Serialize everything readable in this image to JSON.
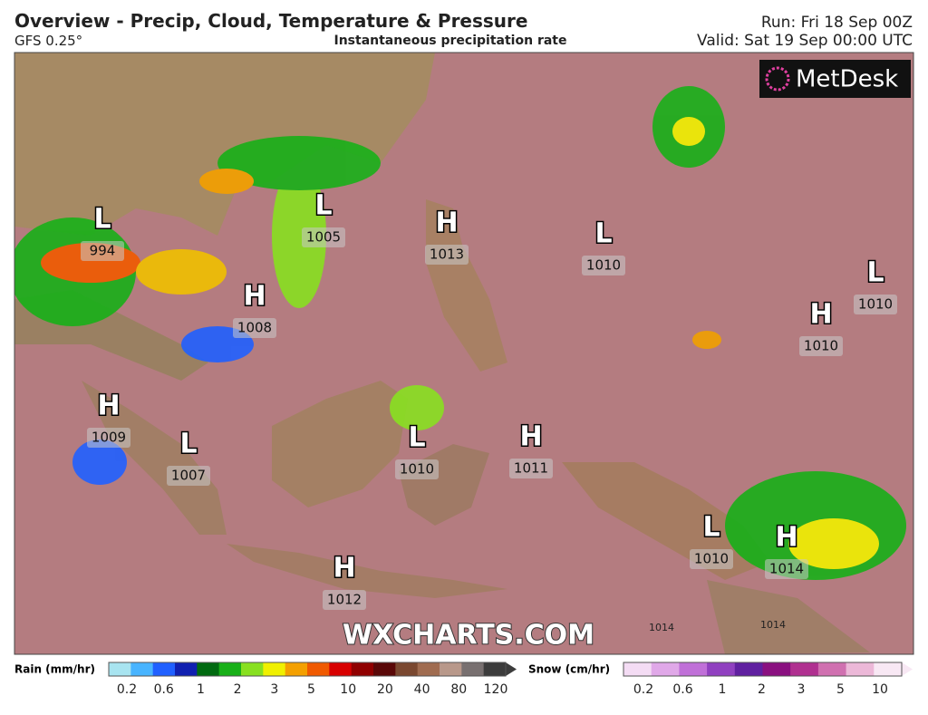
{
  "header": {
    "title": "Overview - Precip, Cloud, Temperature & Pressure",
    "model": "GFS 0.25°",
    "product": "Instantaneous precipitation rate",
    "run": "Run: Fri 18 Sep 00Z",
    "valid": "Valid: Sat 19 Sep 00:00 UTC"
  },
  "logo": "MetDesk",
  "watermark": "WXCHARTS.COM",
  "pressure_centers": [
    {
      "type": "L",
      "value": 994
    },
    {
      "type": "L",
      "value": 1005
    },
    {
      "type": "H",
      "value": 1013
    },
    {
      "type": "L",
      "value": 1010
    },
    {
      "type": "L",
      "value": 1010
    },
    {
      "type": "H",
      "value": 1008
    },
    {
      "type": "H",
      "value": 1010
    },
    {
      "type": "H",
      "value": 1009
    },
    {
      "type": "L",
      "value": 1007
    },
    {
      "type": "L",
      "value": 1010
    },
    {
      "type": "H",
      "value": 1011
    },
    {
      "type": "L",
      "value": 1010
    },
    {
      "type": "H",
      "value": 1014
    },
    {
      "type": "H",
      "value": 1012
    }
  ],
  "isobar_labels": [
    1014,
    1014
  ],
  "legend": {
    "rain": {
      "title": "Rain (mm/hr)",
      "labels": [
        0.2,
        0.6,
        1,
        2,
        3,
        5,
        10,
        20,
        40,
        80,
        120
      ],
      "colors": [
        "#a8e4f0",
        "#48b4ff",
        "#2060ff",
        "#1020b0",
        "#006a10",
        "#18b018",
        "#88e020",
        "#f0f000",
        "#f4a000",
        "#f05a00",
        "#d80000",
        "#900000",
        "#5a0808",
        "#7a4830",
        "#a06c50",
        "#b8988a",
        "#787070",
        "#3c3c3c"
      ]
    },
    "snow": {
      "title": "Snow (cm/hr)",
      "labels": [
        0.2,
        0.6,
        1,
        2,
        3,
        5,
        10
      ],
      "colors": [
        "#f4dcf4",
        "#e0a8e8",
        "#c070d8",
        "#9040c0",
        "#6020a0",
        "#8a1080",
        "#b03090",
        "#d070b0",
        "#ecb8d8",
        "#f8e8f4"
      ]
    }
  }
}
